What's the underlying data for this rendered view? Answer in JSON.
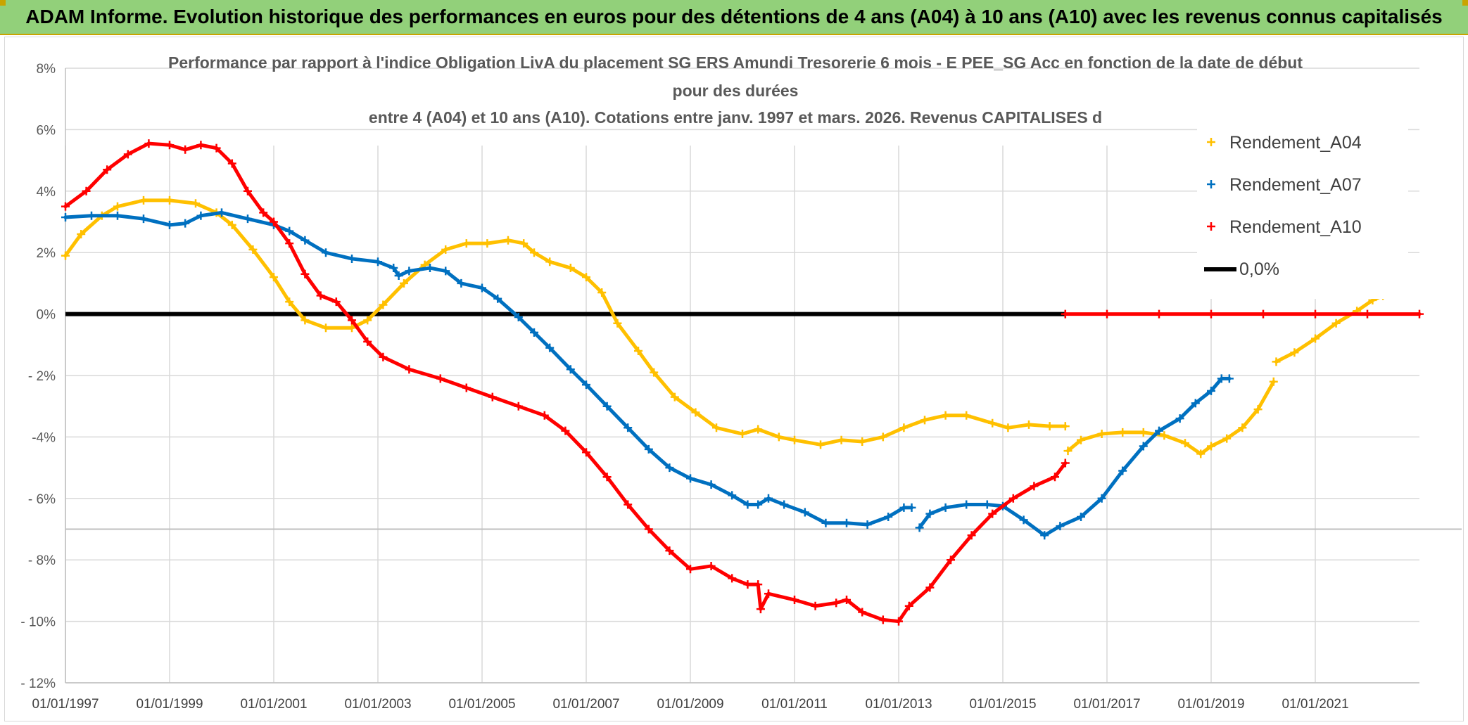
{
  "banner": {
    "title": "ADAM Informe. Evolution historique des performances en euros pour des détentions de 4 ans (A04) à 10 ans (A10) avec les revenus connus capitalisés"
  },
  "colors": {
    "A04": "#ffc000",
    "A07": "#0070c0",
    "A10": "#ff0000",
    "zero": "#000000",
    "banner": "#92d07a"
  },
  "chart_data": {
    "type": "scatter",
    "title_lines": [
      "Performance par rapport à l'indice Obligation LivA  du placement SG ERS Amundi Tresorerie 6 mois - E PEE_SG Acc en fonction de la date de début",
      "pour des durées",
      "entre 4 (A04) et 10 ans (A10). Cotations entre janv. 1997 et mars. 2026. Revenus CAPITALISES d"
    ],
    "xlim": [
      1997.0,
      2023.0
    ],
    "ylim": [
      -12,
      8
    ],
    "x_ticks": [
      {
        "x": 1997,
        "label": "01/01/1997"
      },
      {
        "x": 1999,
        "label": "01/01/1999"
      },
      {
        "x": 2001,
        "label": "01/01/2001"
      },
      {
        "x": 2003,
        "label": "01/01/2003"
      },
      {
        "x": 2005,
        "label": "01/01/2005"
      },
      {
        "x": 2007,
        "label": "01/01/2007"
      },
      {
        "x": 2009,
        "label": "01/01/2009"
      },
      {
        "x": 2011,
        "label": "01/01/2011"
      },
      {
        "x": 2013,
        "label": "01/01/2013"
      },
      {
        "x": 2015,
        "label": "01/01/2015"
      },
      {
        "x": 2017,
        "label": "01/01/2017"
      },
      {
        "x": 2019,
        "label": "01/01/2019"
      },
      {
        "x": 2021,
        "label": "01/01/2021"
      }
    ],
    "y_ticks": [
      {
        "y": 8,
        "label": "8%"
      },
      {
        "y": 6,
        "label": "6%"
      },
      {
        "y": 4,
        "label": "4%"
      },
      {
        "y": 2,
        "label": "2%"
      },
      {
        "y": 0,
        "label": "0%"
      },
      {
        "y": -2,
        "label": "- 2%"
      },
      {
        "y": -4,
        "label": "-4%"
      },
      {
        "y": -6,
        "label": "- 6%"
      },
      {
        "y": -8,
        "label": "- 8%"
      },
      {
        "y": -10,
        "label": "- 10%"
      },
      {
        "y": -12,
        "label": "- 12%"
      }
    ],
    "legend": [
      {
        "name": "Rendement_A04",
        "key": "A04",
        "marker": "+"
      },
      {
        "name": "Rendement_A07",
        "key": "A07",
        "marker": "+"
      },
      {
        "name": "Rendement_A10",
        "key": "A10",
        "marker": "+"
      },
      {
        "name": "0,0%",
        "key": "zero",
        "marker": "line"
      }
    ],
    "series": [
      {
        "name": "Rendement_A04",
        "key": "A04",
        "segments": [
          [
            [
              1997.0,
              1.9
            ],
            [
              1997.3,
              2.6
            ],
            [
              1997.7,
              3.2
            ],
            [
              1998.0,
              3.5
            ],
            [
              1998.5,
              3.7
            ],
            [
              1999.0,
              3.7
            ],
            [
              1999.5,
              3.6
            ],
            [
              1999.9,
              3.3
            ],
            [
              2000.2,
              2.9
            ],
            [
              2000.6,
              2.1
            ],
            [
              2001.0,
              1.2
            ],
            [
              2001.3,
              0.4
            ],
            [
              2001.6,
              -0.2
            ],
            [
              2002.0,
              -0.45
            ],
            [
              2002.5,
              -0.45
            ],
            [
              2002.8,
              -0.2
            ],
            [
              2003.1,
              0.3
            ],
            [
              2003.5,
              1.0
            ],
            [
              2003.9,
              1.6
            ],
            [
              2004.3,
              2.1
            ],
            [
              2004.7,
              2.3
            ],
            [
              2005.1,
              2.3
            ],
            [
              2005.5,
              2.4
            ],
            [
              2005.8,
              2.3
            ],
            [
              2006.0,
              2.0
            ],
            [
              2006.3,
              1.7
            ],
            [
              2006.7,
              1.5
            ],
            [
              2007.0,
              1.2
            ],
            [
              2007.3,
              0.7
            ],
            [
              2007.6,
              -0.3
            ],
            [
              2008.0,
              -1.2
            ],
            [
              2008.3,
              -1.9
            ],
            [
              2008.7,
              -2.7
            ],
            [
              2009.1,
              -3.2
            ],
            [
              2009.5,
              -3.7
            ],
            [
              2010.0,
              -3.9
            ],
            [
              2010.3,
              -3.75
            ],
            [
              2010.7,
              -4.0
            ],
            [
              2011.0,
              -4.1
            ],
            [
              2011.5,
              -4.25
            ],
            [
              2011.9,
              -4.1
            ],
            [
              2012.3,
              -4.15
            ],
            [
              2012.7,
              -4.0
            ],
            [
              2013.1,
              -3.7
            ],
            [
              2013.5,
              -3.45
            ],
            [
              2013.9,
              -3.3
            ],
            [
              2014.3,
              -3.3
            ],
            [
              2014.8,
              -3.55
            ],
            [
              2015.1,
              -3.7
            ],
            [
              2015.5,
              -3.6
            ],
            [
              2015.9,
              -3.65
            ],
            [
              2016.2,
              -3.65
            ]
          ],
          [
            [
              2016.25,
              -4.45
            ],
            [
              2016.5,
              -4.1
            ],
            [
              2016.9,
              -3.9
            ],
            [
              2017.3,
              -3.85
            ],
            [
              2017.7,
              -3.85
            ],
            [
              2018.1,
              -3.95
            ],
            [
              2018.5,
              -4.2
            ],
            [
              2018.8,
              -4.55
            ],
            [
              2019.0,
              -4.3
            ],
            [
              2019.3,
              -4.05
            ],
            [
              2019.6,
              -3.7
            ],
            [
              2019.9,
              -3.1
            ],
            [
              2020.2,
              -2.2
            ]
          ],
          [
            [
              2020.25,
              -1.55
            ],
            [
              2020.6,
              -1.25
            ],
            [
              2021.0,
              -0.8
            ],
            [
              2021.4,
              -0.3
            ],
            [
              2021.8,
              0.1
            ],
            [
              2022.1,
              0.45
            ],
            [
              2022.3,
              0.6
            ]
          ]
        ]
      },
      {
        "name": "Rendement_A07",
        "key": "A07",
        "segments": [
          [
            [
              1997.0,
              3.15
            ],
            [
              1997.5,
              3.2
            ],
            [
              1998.0,
              3.2
            ],
            [
              1998.5,
              3.1
            ],
            [
              1999.0,
              2.9
            ],
            [
              1999.3,
              2.95
            ],
            [
              1999.6,
              3.2
            ],
            [
              2000.0,
              3.3
            ],
            [
              2000.5,
              3.1
            ],
            [
              2001.0,
              2.9
            ],
            [
              2001.3,
              2.7
            ],
            [
              2001.6,
              2.4
            ],
            [
              2002.0,
              2.0
            ],
            [
              2002.5,
              1.8
            ],
            [
              2003.0,
              1.7
            ],
            [
              2003.3,
              1.5
            ],
            [
              2003.4,
              1.25
            ],
            [
              2003.6,
              1.4
            ],
            [
              2004.0,
              1.5
            ],
            [
              2004.3,
              1.4
            ],
            [
              2004.6,
              1.0
            ],
            [
              2005.0,
              0.85
            ],
            [
              2005.3,
              0.5
            ],
            [
              2005.7,
              -0.1
            ],
            [
              2006.0,
              -0.6
            ],
            [
              2006.3,
              -1.1
            ],
            [
              2006.7,
              -1.8
            ],
            [
              2007.0,
              -2.3
            ],
            [
              2007.4,
              -3.0
            ],
            [
              2007.8,
              -3.7
            ],
            [
              2008.2,
              -4.4
            ],
            [
              2008.6,
              -5.0
            ],
            [
              2009.0,
              -5.35
            ],
            [
              2009.4,
              -5.55
            ],
            [
              2009.8,
              -5.9
            ],
            [
              2010.1,
              -6.2
            ],
            [
              2010.3,
              -6.2
            ],
            [
              2010.5,
              -6.0
            ],
            [
              2010.8,
              -6.2
            ],
            [
              2011.2,
              -6.45
            ],
            [
              2011.6,
              -6.8
            ],
            [
              2012.0,
              -6.8
            ],
            [
              2012.4,
              -6.85
            ],
            [
              2012.8,
              -6.6
            ],
            [
              2013.1,
              -6.3
            ],
            [
              2013.25,
              -6.3
            ]
          ],
          [
            [
              2013.4,
              -6.95
            ],
            [
              2013.6,
              -6.5
            ],
            [
              2013.9,
              -6.3
            ],
            [
              2014.3,
              -6.2
            ],
            [
              2014.7,
              -6.2
            ],
            [
              2015.0,
              -6.25
            ],
            [
              2015.4,
              -6.7
            ],
            [
              2015.8,
              -7.2
            ],
            [
              2016.1,
              -6.9
            ],
            [
              2016.5,
              -6.6
            ],
            [
              2016.9,
              -6.0
            ],
            [
              2017.3,
              -5.1
            ],
            [
              2017.7,
              -4.3
            ],
            [
              2018.0,
              -3.8
            ],
            [
              2018.4,
              -3.4
            ],
            [
              2018.7,
              -2.9
            ],
            [
              2019.0,
              -2.5
            ],
            [
              2019.2,
              -2.1
            ],
            [
              2019.35,
              -2.1
            ]
          ]
        ]
      },
      {
        "name": "Rendement_A10",
        "key": "A10",
        "segments": [
          [
            [
              1997.0,
              3.5
            ],
            [
              1997.4,
              4.0
            ],
            [
              1997.8,
              4.7
            ],
            [
              1998.2,
              5.2
            ],
            [
              1998.6,
              5.55
            ],
            [
              1999.0,
              5.5
            ],
            [
              1999.3,
              5.35
            ],
            [
              1999.6,
              5.5
            ],
            [
              1999.9,
              5.4
            ],
            [
              2000.2,
              4.9
            ],
            [
              2000.5,
              4.0
            ],
            [
              2000.8,
              3.3
            ],
            [
              2001.0,
              3.0
            ],
            [
              2001.3,
              2.3
            ],
            [
              2001.6,
              1.3
            ],
            [
              2001.9,
              0.6
            ],
            [
              2002.2,
              0.4
            ],
            [
              2002.5,
              -0.2
            ],
            [
              2002.8,
              -0.9
            ],
            [
              2003.1,
              -1.4
            ],
            [
              2003.6,
              -1.8
            ],
            [
              2004.2,
              -2.1
            ],
            [
              2004.7,
              -2.4
            ],
            [
              2005.2,
              -2.7
            ],
            [
              2005.7,
              -3.0
            ],
            [
              2006.2,
              -3.3
            ],
            [
              2006.6,
              -3.8
            ],
            [
              2007.0,
              -4.5
            ],
            [
              2007.4,
              -5.3
            ],
            [
              2007.8,
              -6.2
            ],
            [
              2008.2,
              -7.0
            ],
            [
              2008.6,
              -7.7
            ],
            [
              2009.0,
              -8.3
            ],
            [
              2009.4,
              -8.2
            ],
            [
              2009.8,
              -8.6
            ],
            [
              2010.1,
              -8.8
            ],
            [
              2010.3,
              -8.8
            ],
            [
              2010.35,
              -9.6
            ],
            [
              2010.5,
              -9.1
            ],
            [
              2011.0,
              -9.3
            ],
            [
              2011.4,
              -9.5
            ],
            [
              2011.8,
              -9.4
            ],
            [
              2012.0,
              -9.3
            ],
            [
              2012.3,
              -9.7
            ],
            [
              2012.7,
              -9.95
            ],
            [
              2013.0,
              -10.0
            ],
            [
              2013.2,
              -9.5
            ],
            [
              2013.6,
              -8.9
            ],
            [
              2014.0,
              -8.0
            ],
            [
              2014.4,
              -7.2
            ],
            [
              2014.8,
              -6.5
            ],
            [
              2015.2,
              -6.0
            ],
            [
              2015.6,
              -5.6
            ],
            [
              2016.0,
              -5.3
            ],
            [
              2016.2,
              -4.85
            ]
          ],
          [
            [
              2016.2,
              0.0
            ],
            [
              2017.0,
              0.0
            ],
            [
              2018.0,
              0.0
            ],
            [
              2019.0,
              0.0
            ],
            [
              2020.0,
              0.0
            ],
            [
              2021.0,
              0.0
            ],
            [
              2022.0,
              0.0
            ],
            [
              2023.0,
              0.0
            ]
          ]
        ]
      },
      {
        "name": "0,0%",
        "key": "zero",
        "segments": [
          [
            [
              1997.0,
              0.0
            ],
            [
              2016.2,
              0.0
            ]
          ]
        ]
      }
    ]
  }
}
